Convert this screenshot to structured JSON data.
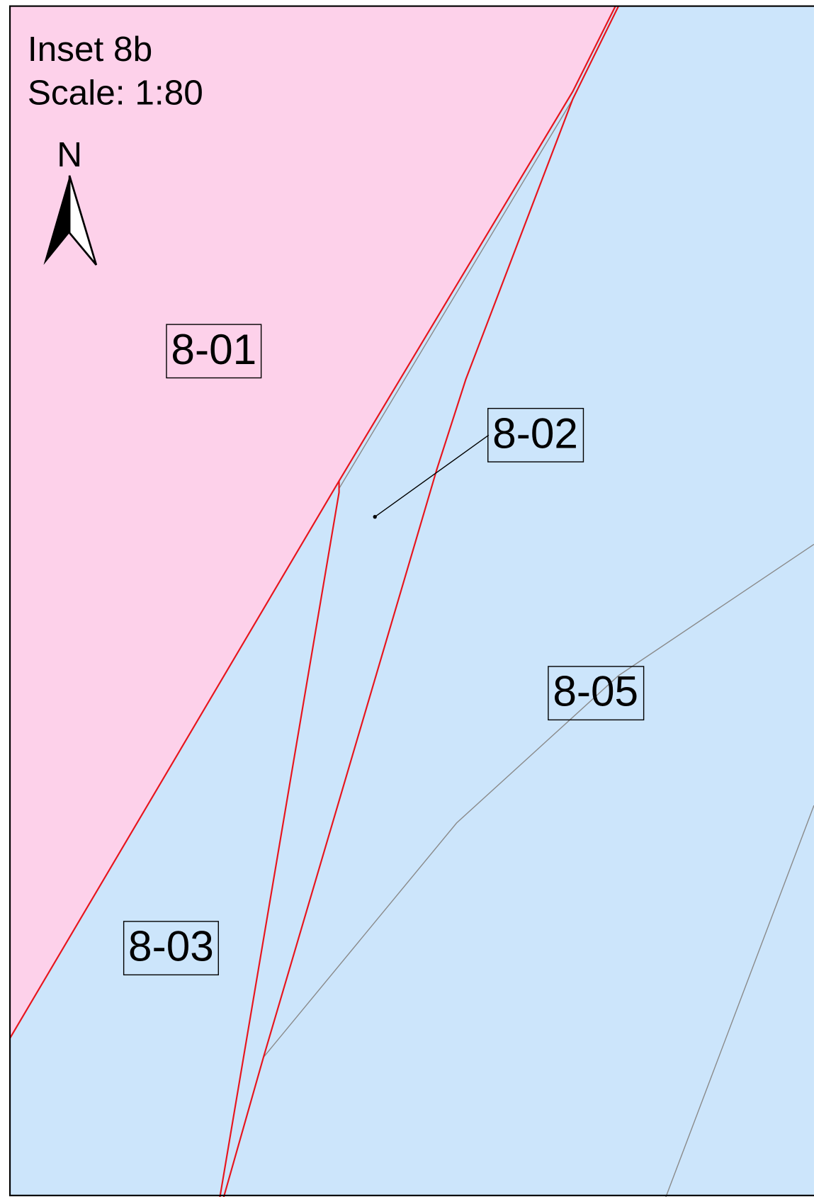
{
  "header": {
    "title": "Inset 8b",
    "scale": "Scale: 1:80"
  },
  "north": "N",
  "parcels": [
    {
      "label": "8-01"
    },
    {
      "label": "8-02"
    },
    {
      "label": "8-05"
    },
    {
      "label": "8-03"
    }
  ]
}
